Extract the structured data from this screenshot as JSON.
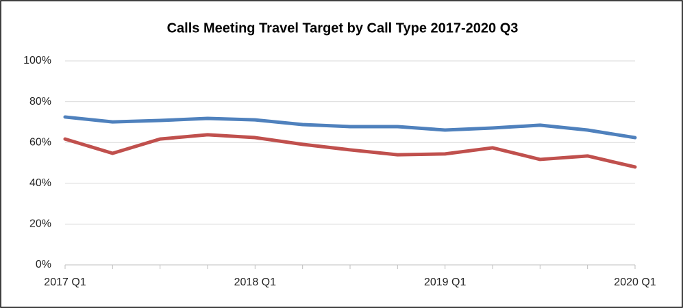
{
  "chart_data": {
    "type": "line",
    "title": "Calls Meeting Travel Target by Call Type 2017-2020 Q3",
    "categories": [
      "2017 Q1",
      null,
      null,
      null,
      "2018 Q1",
      null,
      null,
      null,
      "2019 Q1",
      null,
      null,
      null,
      "2020 Q1"
    ],
    "series": [
      {
        "color": "#4f81bd",
        "values": [
          72.5,
          70.1,
          70.8,
          71.8,
          71.1,
          68.8,
          67.8,
          67.8,
          66.1,
          67.1,
          68.5,
          66.1,
          62.4
        ]
      },
      {
        "color": "#c0504d",
        "values": [
          61.7,
          54.7,
          61.7,
          63.8,
          62.4,
          59.1,
          56.4,
          54.0,
          54.4,
          57.4,
          51.7,
          53.4,
          48.0
        ]
      }
    ],
    "ylim": [
      0,
      100
    ],
    "yticks": [
      {
        "value": 0,
        "label": "0%"
      },
      {
        "value": 20,
        "label": "20%"
      },
      {
        "value": 40,
        "label": "40%"
      },
      {
        "value": 60,
        "label": "60%"
      },
      {
        "value": 80,
        "label": "80%"
      },
      {
        "value": 100,
        "label": "100%"
      }
    ],
    "grid": true
  }
}
